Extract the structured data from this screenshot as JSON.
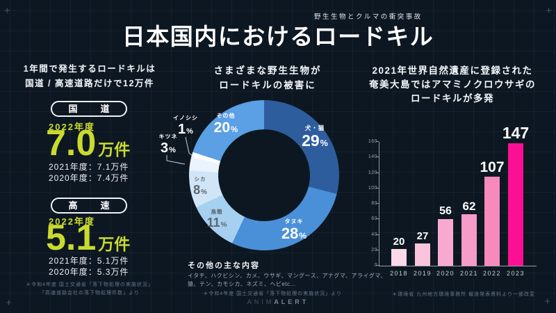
{
  "theme": {
    "background": "#0d1722",
    "accent": "#c9da2f"
  },
  "header": {
    "subtitle": "野生生物とクルマの衝突事故",
    "title": "日本国内におけるロードキル"
  },
  "left_panel": {
    "intro_line1": "1年間で発生するロードキルは",
    "intro_line2": "国道 / 高速道路だけで12万件",
    "sections": [
      {
        "badge": "国　道",
        "year_label": "2022年度",
        "value": "7.0",
        "unit": "万件",
        "history": [
          "2021年度：7.1万件",
          "2020年度：7.4万件"
        ]
      },
      {
        "badge": "高　速",
        "year_label": "2022年度",
        "value": "5.1",
        "unit": "万件",
        "history": [
          "2021年度：5.1万件",
          "2020年度：5.3万件"
        ]
      }
    ],
    "footnote_line1": "＊令和4年度 国土交通省「落下物処理の実施状況」",
    "footnote_line2": "「高速道路会社の落下物処理件数」より"
  },
  "center_panel": {
    "heading_line1": "さまざまな野生生物が",
    "heading_line2": "ロードキルの被害に",
    "others_heading": "その他の主な内容",
    "others_line1": "イタチ、ハクビシン、カメ、ウサギ、マングース、アナグマ、アライグマ、",
    "others_line2": "猿、テン、カモシカ、ネズミ、ヘビetc...",
    "footnote": "＊令和4年度 国土交通省「落下物処理の実施状況」より"
  },
  "right_panel": {
    "heading_line1": "2021年世界自然遺産に登録された",
    "heading_line2": "奄美大島ではアマミノクロウサギの",
    "heading_line3": "ロードキルが多発",
    "footnote": "＊環境省 九州地方環境事務所 報道発表資料より一部改変"
  },
  "footer": {
    "logo_thin": "ANIM",
    "logo_bold": "ALERT"
  },
  "chart_data": [
    {
      "type": "pie",
      "title": "さまざまな野生生物がロードキルの被害に",
      "donut": true,
      "percent_sign": "%",
      "segments": [
        {
          "label": "犬・猫",
          "value": 29,
          "color": "#2e5d9e"
        },
        {
          "label": "タヌキ",
          "value": 28,
          "color": "#4a90d8"
        },
        {
          "label": "鳥類",
          "value": 11,
          "color": "#a6d0f0"
        },
        {
          "label": "シカ",
          "value": 8,
          "color": "#d0e6f8"
        },
        {
          "label": "キツネ",
          "value": 3,
          "color": "#eaf4fc"
        },
        {
          "label": "イノシシ",
          "value": 1,
          "color": "#ffffff"
        },
        {
          "label": "その他",
          "value": 20,
          "color": "#5b9fe4"
        }
      ]
    },
    {
      "type": "bar",
      "title": "奄美大島におけるアマミノクロウサギのロードキル件数",
      "categories": [
        "2018",
        "2019",
        "2020",
        "2021",
        "2022",
        "2023"
      ],
      "values": [
        20,
        27,
        56,
        62,
        107,
        147
      ],
      "bar_colors": [
        "#fbd9e8",
        "#f9c4dc",
        "#f8a9d0",
        "#f79cc8",
        "#f78abd",
        "#fb1095"
      ],
      "xlabel": "",
      "ylabel": "",
      "ylim": [
        0,
        160
      ],
      "yticks": [
        0,
        20,
        40,
        60,
        80,
        100,
        120,
        140,
        160
      ],
      "grid": false,
      "legend": "none"
    }
  ]
}
